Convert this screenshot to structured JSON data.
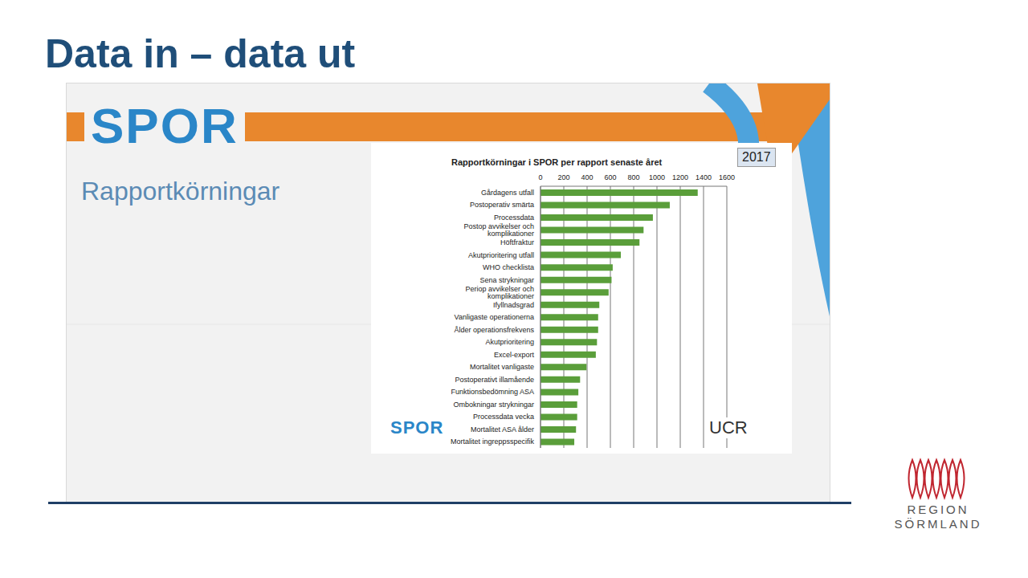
{
  "slide": {
    "title": "Data in – data ut",
    "logo": "SPOR",
    "heading": "Rapportkörningar",
    "badge": "2017",
    "chart_logos": [
      "SPOR",
      "UCR"
    ],
    "footer_logo": [
      "REGION",
      "SÖRMLAND"
    ]
  },
  "chart_data": {
    "type": "bar",
    "title": "Rapportkörningar i SPOR per rapport senaste året",
    "orientation": "horizontal",
    "categories": [
      "Gårdagens utfall",
      "Postoperativ smärta",
      "Processdata",
      "Postop avvikelser och komplikationer",
      "Höftfraktur",
      "Akutprioritering utfall",
      "WHO checklista",
      "Sena strykningar",
      "Periop avvikelser och komplikationer",
      "Ifyllnadsgrad",
      "Vanligaste operationerna",
      "Ålder operationsfrekvens",
      "Akutprioritering",
      "Excel-export",
      "Mortalitet vanligaste",
      "Postoperativt illamående",
      "Funktionsbedömning ASA",
      "Ombokningar strykningar",
      "Processdata vecka",
      "Mortalitet ASA ålder",
      "Mortalitet ingreppsspecifik"
    ],
    "values": [
      1350,
      1110,
      965,
      885,
      850,
      690,
      620,
      610,
      585,
      505,
      495,
      495,
      485,
      475,
      395,
      340,
      325,
      315,
      315,
      305,
      290
    ],
    "color": "#5a9e3a",
    "xlim": [
      0,
      1600
    ],
    "xticks": [
      0,
      200,
      400,
      600,
      800,
      1000,
      1200,
      1400,
      1600
    ],
    "grid": true
  }
}
